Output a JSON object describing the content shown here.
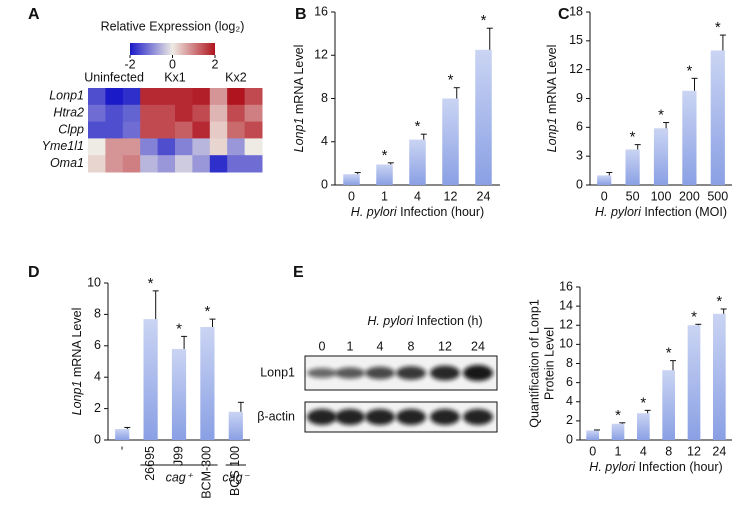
{
  "chart_data": [
    {
      "type": "heatmap",
      "panel": "A",
      "title": "Relative Expression (log₂)",
      "clim": [
        -2,
        2
      ],
      "cticks": [
        -2,
        0,
        2
      ],
      "colormap": [
        "#1a1ac8",
        "#eeeae4",
        "#b0141e"
      ],
      "column_groups": [
        "Uninfected",
        "Uninfected",
        "Uninfected",
        "Kx1",
        "Kx1",
        "Kx1",
        "Kx1",
        "Kx2",
        "Kx2",
        "Kx2"
      ],
      "rows": [
        "Lonp1",
        "Htra2",
        "Clpp",
        "Yme1l1",
        "Oma1"
      ],
      "values": [
        [
          -1.5,
          -2,
          -1.8,
          1.8,
          1.8,
          1.8,
          1.9,
          0.8,
          2,
          1.5
        ],
        [
          -1.2,
          -1.5,
          -1.3,
          1.5,
          1.5,
          1.8,
          1.5,
          0.5,
          1.5,
          1
        ],
        [
          -1.5,
          -1.5,
          -1.2,
          1.5,
          1.5,
          1.3,
          1.8,
          0.3,
          1.2,
          1.5
        ],
        [
          0,
          0.8,
          0.8,
          -1,
          -1.5,
          -1,
          -0.5,
          0.2,
          -0.8,
          0
        ],
        [
          0.2,
          0.8,
          1,
          -0.5,
          -0.8,
          -0.3,
          -0.8,
          -1.8,
          -1.2,
          -1.2
        ]
      ]
    },
    {
      "type": "bar",
      "panel": "B",
      "ylabel_italic": "Lonp1",
      "ylabel": " mRNA Level",
      "xlabel_italic": "H. pylori",
      "xlabel": " Infection (hour)",
      "color": "#8aa0e4",
      "categories": [
        "0",
        "1",
        "4",
        "12",
        "24"
      ],
      "values": [
        1,
        1.9,
        4.2,
        8,
        12.5
      ],
      "errors": [
        0.15,
        0.15,
        0.5,
        1,
        2
      ],
      "annotations": [
        null,
        "*",
        "*",
        "*",
        "*"
      ],
      "ylim": [
        0,
        16
      ],
      "yticks": [
        0,
        4,
        8,
        12,
        16
      ]
    },
    {
      "type": "bar",
      "panel": "C",
      "ylabel_italic": "Lonp1",
      "ylabel": " mRNA Level",
      "xlabel_italic": "H. pylori",
      "xlabel": " Infection (MOI)",
      "color": "#8aa0e4",
      "categories": [
        "0",
        "50",
        "100",
        "200",
        "500"
      ],
      "values": [
        1,
        3.7,
        5.9,
        9.8,
        14
      ],
      "errors": [
        0.3,
        0.5,
        0.6,
        1.3,
        1.6
      ],
      "annotations": [
        null,
        "*",
        "*",
        "*",
        "*"
      ],
      "ylim": [
        0,
        18
      ],
      "yticks": [
        0,
        3,
        6,
        9,
        12,
        15,
        18
      ]
    },
    {
      "type": "bar",
      "panel": "D",
      "ylabel_italic": "Lonp1",
      "ylabel": " mRNA Level",
      "color": "#8aa0e4",
      "categories": [
        "-",
        "26695",
        "J99",
        "BCM-300",
        "BCS 100"
      ],
      "values": [
        0.7,
        7.7,
        5.8,
        7.2,
        1.8
      ],
      "errors": [
        0.1,
        1.8,
        0.8,
        0.5,
        0.6
      ],
      "annotations": [
        null,
        "*",
        "*",
        "*",
        null
      ],
      "category_groups": [
        null,
        "cag⁺",
        "cag⁺",
        "cag⁺",
        "cag⁻"
      ],
      "ylim": [
        0,
        10
      ],
      "yticks": [
        0,
        2,
        4,
        6,
        8,
        10
      ]
    },
    {
      "type": "blot",
      "panel": "E",
      "title_italic": "H. pylori",
      "title": " Infection (h)",
      "lanes": [
        "0",
        "1",
        "4",
        "8",
        "12",
        "24"
      ],
      "rows": [
        "Lonp1",
        "β-actin"
      ]
    },
    {
      "type": "bar",
      "ylabel": [
        "Quantification of Lonp1",
        "Protein Level"
      ],
      "xlabel_italic": "H. pylori",
      "xlabel": " Infection (hour)",
      "color": "#8aa0e4",
      "categories": [
        "0",
        "1",
        "4",
        "8",
        "12",
        "24"
      ],
      "values": [
        1,
        1.7,
        2.8,
        7.3,
        12,
        13.2
      ],
      "errors": [
        0.05,
        0.1,
        0.3,
        1,
        0.1,
        0.5
      ],
      "annotations": [
        null,
        "*",
        "*",
        "*",
        "*",
        "*"
      ],
      "ylim": [
        0,
        16
      ],
      "yticks": [
        0,
        2,
        4,
        6,
        8,
        10,
        12,
        14,
        16
      ]
    }
  ]
}
